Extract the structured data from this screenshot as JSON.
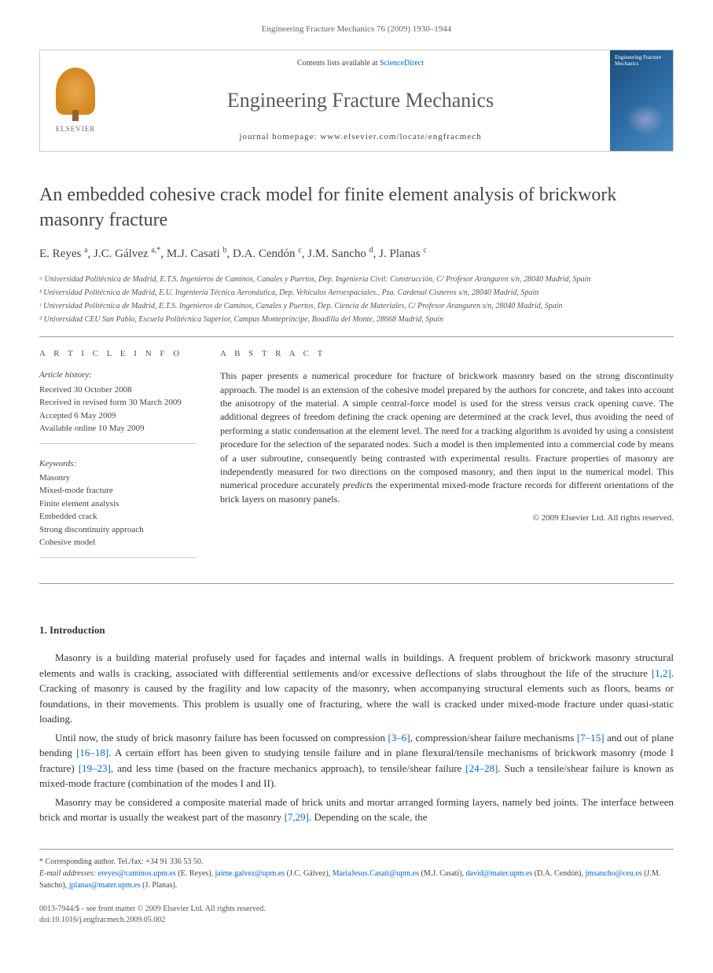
{
  "top_citation": "Engineering Fracture Mechanics 76 (2009) 1930–1944",
  "header": {
    "contents_prefix": "Contents lists available at ",
    "contents_link": "ScienceDirect",
    "journal_name": "Engineering Fracture Mechanics",
    "homepage_label": "journal homepage: www.elsevier.com/locate/engfracmech",
    "elsevier_label": "ELSEVIER",
    "cover_title": "Engineering Fracture Mechanics"
  },
  "article": {
    "title": "An embedded cohesive crack model for finite element analysis of brickwork masonry fracture",
    "authors_html": "E. Reyes <sup>a</sup>, J.C. Gálvez <sup>a,*</sup>, M.J. Casati <sup>b</sup>, D.A. Cendón <sup>c</sup>, J.M. Sancho <sup>d</sup>, J. Planas <sup>c</sup>",
    "affiliations": [
      "ᵃ Universidad Politécnica de Madrid, E.T.S. Ingenieros de Caminos, Canales y Puertos, Dep. Ingeniería Civil: Construcción, C/ Profesor Aranguren s/n, 28040 Madrid, Spain",
      "ᵇ Universidad Politécnica de Madrid, E.U. Ingeniería Técnica Aeronáutica, Dep. Vehículos Aeroespaciales., Pza. Cardenal Cisneros s/n, 28040 Madrid, Spain",
      "ᶜ Universidad Politécnica de Madrid, E.T.S. Ingenieros de Caminos, Canales y Puertos, Dep. Ciencia de Materiales, C/ Profesor Aranguren s/n, 28040 Madrid, Spain",
      "ᵈ Universidad CEU San Pablo, Escuela Politécnica Superior, Campus Montepríncipe, Boadilla del Monte, 28668 Madrid, Spain"
    ]
  },
  "info": {
    "heading": "A R T I C L E   I N F O",
    "history_heading": "Article history:",
    "history_lines": [
      "Received 30 October 2008",
      "Received in revised form 30 March 2009",
      "Accepted 6 May 2009",
      "Available online 10 May 2009"
    ],
    "keywords_heading": "Keywords:",
    "keywords": [
      "Masonry",
      "Mixed-mode fracture",
      "Finite element analysis",
      "Embedded crack",
      "Strong discontinuity approach",
      "Cohesive model"
    ]
  },
  "abstract": {
    "heading": "A B S T R A C T",
    "text": "This paper presents a numerical procedure for fracture of brickwork masonry based on the strong discontinuity approach. The model is an extension of the cohesive model prepared by the authors for concrete, and takes into account the anisotropy of the material. A simple central-force model is used for the stress versus crack opening curve. The additional degrees of freedom defining the crack opening are determined at the crack level, thus avoiding the need of performing a static condensation at the element level. The need for a tracking algorithm is avoided by using a consistent procedure for the selection of the separated nodes. Such a model is then implemented into a commercial code by means of a user subroutine, consequently being contrasted with experimental results. Fracture properties of masonry are independently measured for two directions on the composed masonry, and then input in the numerical model. This numerical procedure accurately predicts the experimental mixed-mode fracture records for different orientations of the brick layers on masonry panels.",
    "copyright": "© 2009 Elsevier Ltd. All rights reserved."
  },
  "body": {
    "section_number": "1.",
    "section_title": "Introduction",
    "paragraphs": [
      "Masonry is a building material profusely used for façades and internal walls in buildings. A frequent problem of brickwork masonry structural elements and walls is cracking, associated with differential settlements and/or excessive deflections of slabs throughout the life of the structure [1,2]. Cracking of masonry is caused by the fragility and low capacity of the masonry, when accompanying structural elements such as floors, beams or foundations, in their movements. This problem is usually one of fracturing, where the wall is cracked under mixed-mode fracture under quasi-static loading.",
      "Until now, the study of brick masonry failure has been focussed on compression [3–6], compression/shear failure mechanisms [7–15] and out of plane bending [16–18]. A certain effort has been given to studying tensile failure and in plane flexural/tensile mechanisms of brickwork masonry (mode I fracture) [19–23], and less time (based on the fracture mechanics approach), to tensile/shear failure [24–28]. Such a tensile/shear failure is known as mixed-mode fracture (combination of the modes I and II).",
      "Masonry may be considered a composite material made of brick units and mortar arranged forming layers, namely bed joints. The interface between brick and mortar is usually the weakest part of the masonry [7,29]. Depending on the scale, the"
    ],
    "ref_links": {
      "p0": [
        "[1,2]"
      ],
      "p1": [
        "[3–6]",
        "[7–15]",
        "[16–18]",
        "[19–23]",
        "[24–28]"
      ],
      "p2": [
        "[7,29]"
      ]
    }
  },
  "footnotes": {
    "corresponding": "* Corresponding author. Tel./fax: +34 91 336 53 50.",
    "emails_label": "E-mail addresses: ",
    "emails": [
      {
        "addr": "ereyes@caminos.upm.es",
        "who": "(E. Reyes)"
      },
      {
        "addr": "jaime.galvez@upm.es",
        "who": "(J.C. Gálvez)"
      },
      {
        "addr": "MariaJesus.Casati@upm.es",
        "who": "(M.J. Casati)"
      },
      {
        "addr": "david@mater.upm.es",
        "who": "(D.A. Cendón)"
      },
      {
        "addr": "jmsancho@ceu.es",
        "who": "(J.M. Sancho)"
      },
      {
        "addr": "jplanas@mater.upm.es",
        "who": "(J. Planas)"
      }
    ]
  },
  "bottom": {
    "issn_line": "0013-7944/$ - see front matter © 2009 Elsevier Ltd. All rights reserved.",
    "doi_line": "doi:10.1016/j.engfracmech.2009.05.002"
  }
}
